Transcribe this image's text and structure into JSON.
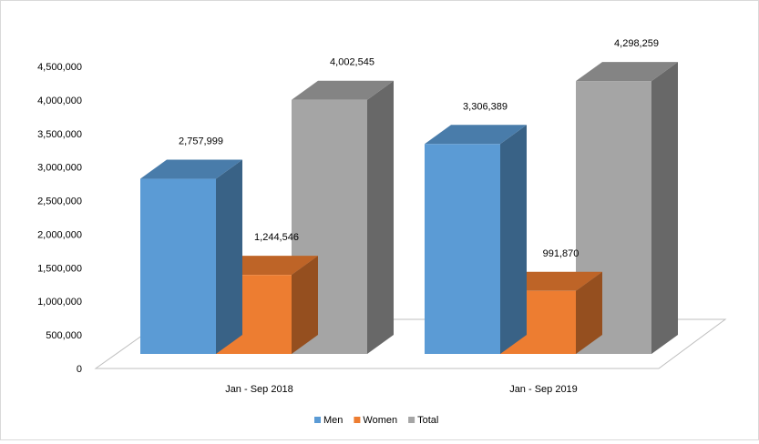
{
  "chart_data": {
    "type": "bar",
    "categories": [
      "Jan - Sep 2018",
      "Jan - Sep 2019"
    ],
    "series": [
      {
        "name": "Men",
        "values": [
          2757999,
          3306389
        ],
        "color": "#5b9bd5"
      },
      {
        "name": "Women",
        "values": [
          1244546,
          991870
        ],
        "color": "#ed7d31"
      },
      {
        "name": "Total",
        "values": [
          4002545,
          4298259
        ],
        "color": "#a5a5a5"
      }
    ],
    "data_labels": [
      [
        "2,757,999",
        "3,306,389"
      ],
      [
        "1,244,546",
        "991,870"
      ],
      [
        "4,002,545",
        "4,298,259"
      ]
    ],
    "y_ticks": [
      "0",
      "500,000",
      "1,000,000",
      "1,500,000",
      "2,000,000",
      "2,500,000",
      "3,000,000",
      "3,500,000",
      "4,000,000",
      "4,500,000"
    ],
    "ylim": [
      0,
      4500000
    ],
    "grid": false,
    "legend_position": "bottom",
    "style": "3d-column"
  }
}
